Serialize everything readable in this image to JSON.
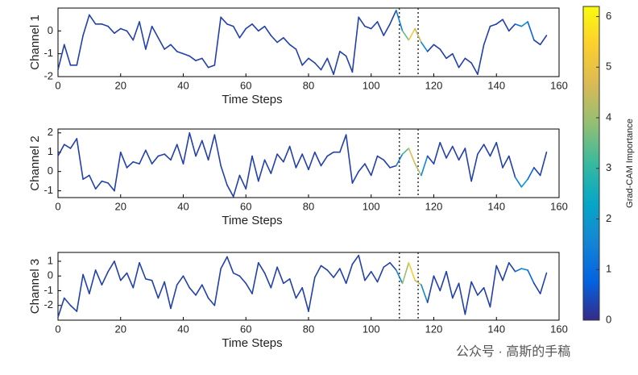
{
  "chart_data": [
    {
      "type": "line",
      "ylabel": "Channel 1",
      "xlabel": "Time Steps",
      "xlim": [
        0,
        160
      ],
      "xticks": [
        0,
        20,
        40,
        60,
        80,
        100,
        120,
        140,
        160
      ],
      "ylim": [
        -2,
        1
      ],
      "yticks": [
        -2,
        -1,
        0
      ],
      "vlines": [
        109,
        115
      ],
      "x": [
        0,
        2,
        4,
        6,
        8,
        10,
        12,
        14,
        16,
        18,
        20,
        22,
        24,
        26,
        28,
        30,
        32,
        34,
        36,
        38,
        40,
        42,
        44,
        46,
        48,
        50,
        52,
        54,
        56,
        58,
        60,
        62,
        64,
        66,
        68,
        70,
        72,
        74,
        76,
        78,
        80,
        82,
        84,
        86,
        88,
        90,
        92,
        94,
        96,
        98,
        100,
        102,
        104,
        106,
        108,
        110,
        112,
        114,
        116,
        118,
        120,
        122,
        124,
        126,
        128,
        130,
        132,
        134,
        136,
        138,
        140,
        142,
        144,
        146,
        148,
        150,
        152,
        154,
        156
      ],
      "values": [
        -1.7,
        -0.6,
        -1.5,
        -1.5,
        -0.2,
        0.7,
        0.3,
        0.3,
        0.2,
        -0.1,
        0.1,
        0.0,
        -0.4,
        0.4,
        -0.8,
        0.2,
        -0.3,
        -0.8,
        -0.6,
        -0.9,
        -1.0,
        -1.1,
        -1.3,
        -1.2,
        -1.6,
        -1.5,
        0.6,
        0.3,
        0.2,
        -0.3,
        0.1,
        0.3,
        0.0,
        0.2,
        -0.2,
        -0.5,
        -0.3,
        -0.6,
        -0.8,
        -1.5,
        -1.2,
        -1.4,
        -1.7,
        -1.2,
        -1.9,
        -0.9,
        -1.1,
        -1.8,
        0.6,
        0.2,
        0.1,
        0.4,
        -0.2,
        0.3,
        0.9,
        0.0,
        -0.4,
        0.1,
        -0.5,
        -0.9,
        -0.6,
        -0.8,
        -1.2,
        -1.0,
        -1.6,
        -1.2,
        -1.4,
        -1.9,
        -0.6,
        0.2,
        0.3,
        0.5,
        0.0,
        0.3,
        0.2,
        0.4,
        -0.4,
        -0.6,
        -0.2
      ],
      "importance": [
        0.3,
        0.3,
        0.3,
        0.3,
        0.3,
        0.3,
        0.3,
        0.3,
        0.3,
        0.3,
        0.3,
        0.3,
        0.3,
        0.3,
        0.3,
        0.3,
        0.3,
        0.3,
        0.3,
        0.3,
        0.3,
        0.3,
        0.3,
        0.3,
        0.3,
        0.3,
        0.3,
        0.3,
        0.3,
        0.3,
        0.3,
        0.3,
        0.3,
        0.3,
        0.3,
        0.3,
        0.3,
        0.3,
        0.3,
        0.3,
        0.3,
        0.3,
        0.3,
        0.3,
        0.3,
        0.3,
        0.3,
        0.3,
        0.3,
        0.3,
        0.3,
        0.3,
        0.3,
        0.3,
        0.3,
        2.5,
        4.5,
        5.8,
        3.0,
        0.3,
        0.3,
        0.3,
        0.3,
        0.3,
        0.3,
        0.3,
        0.3,
        0.3,
        0.3,
        0.3,
        0.3,
        0.3,
        0.3,
        0.3,
        2.0,
        1.5,
        0.3,
        0.3,
        0.3
      ]
    },
    {
      "type": "line",
      "ylabel": "Channel 2",
      "xlabel": "Time Steps",
      "xlim": [
        0,
        160
      ],
      "xticks": [
        0,
        20,
        40,
        60,
        80,
        100,
        120,
        140,
        160
      ],
      "ylim": [
        -1.35,
        2.2
      ],
      "yticks": [
        -1,
        0,
        1,
        2
      ],
      "vlines": [
        109,
        115
      ],
      "x": [
        0,
        2,
        4,
        6,
        8,
        10,
        12,
        14,
        16,
        18,
        20,
        22,
        24,
        26,
        28,
        30,
        32,
        34,
        36,
        38,
        40,
        42,
        44,
        46,
        48,
        50,
        52,
        54,
        56,
        58,
        60,
        62,
        64,
        66,
        68,
        70,
        72,
        74,
        76,
        78,
        80,
        82,
        84,
        86,
        88,
        90,
        92,
        94,
        96,
        98,
        100,
        102,
        104,
        106,
        108,
        110,
        112,
        114,
        116,
        118,
        120,
        122,
        124,
        126,
        128,
        130,
        132,
        134,
        136,
        138,
        140,
        142,
        144,
        146,
        148,
        150,
        152,
        154,
        156
      ],
      "values": [
        0.8,
        1.4,
        1.2,
        1.7,
        -0.4,
        -0.2,
        -0.9,
        -0.5,
        -0.6,
        -1.0,
        1.0,
        0.2,
        0.5,
        0.4,
        1.1,
        0.4,
        0.8,
        0.9,
        0.6,
        1.4,
        0.4,
        2.0,
        0.8,
        1.6,
        0.6,
        1.9,
        0.3,
        -0.7,
        -1.3,
        -0.2,
        -0.9,
        0.8,
        -0.5,
        0.6,
        -0.1,
        0.9,
        0.5,
        1.3,
        0.2,
        0.9,
        0.1,
        1.0,
        0.3,
        0.8,
        1.0,
        1.0,
        1.9,
        -0.6,
        0.0,
        0.4,
        -0.2,
        0.8,
        0.6,
        0.2,
        0.3,
        0.9,
        1.2,
        0.4,
        -0.2,
        0.8,
        0.4,
        1.5,
        0.7,
        1.3,
        0.6,
        1.2,
        -0.5,
        0.9,
        1.4,
        0.8,
        1.5,
        0.2,
        0.8,
        -0.3,
        -0.8,
        -0.4,
        0.2,
        -0.2,
        1.0
      ],
      "importance": [
        0.3,
        0.3,
        0.3,
        0.3,
        0.3,
        0.3,
        0.3,
        0.3,
        0.3,
        0.3,
        0.3,
        0.3,
        0.3,
        0.3,
        0.3,
        0.3,
        0.3,
        0.3,
        0.3,
        0.3,
        0.3,
        0.3,
        0.3,
        0.3,
        0.3,
        0.3,
        0.3,
        0.3,
        0.3,
        0.3,
        0.3,
        0.3,
        0.3,
        0.3,
        0.3,
        0.3,
        0.3,
        0.3,
        0.3,
        0.3,
        0.3,
        0.3,
        0.3,
        0.3,
        0.3,
        0.3,
        0.3,
        0.3,
        0.3,
        0.3,
        0.3,
        0.3,
        0.3,
        0.3,
        0.3,
        2.5,
        4.0,
        5.5,
        3.0,
        0.3,
        0.3,
        0.3,
        0.3,
        0.3,
        0.3,
        0.3,
        0.3,
        0.3,
        0.3,
        0.3,
        0.3,
        0.3,
        0.3,
        0.3,
        2.5,
        1.5,
        0.3,
        0.3,
        0.3
      ]
    },
    {
      "type": "line",
      "ylabel": "Channel 3",
      "xlabel": "Time Steps",
      "xlim": [
        0,
        160
      ],
      "xticks": [
        0,
        20,
        40,
        60,
        80,
        100,
        120,
        140,
        160
      ],
      "ylim": [
        -3,
        1.6
      ],
      "yticks": [
        -2,
        -1,
        0,
        1
      ],
      "vlines": [
        109,
        115
      ],
      "x": [
        0,
        2,
        4,
        6,
        8,
        10,
        12,
        14,
        16,
        18,
        20,
        22,
        24,
        26,
        28,
        30,
        32,
        34,
        36,
        38,
        40,
        42,
        44,
        46,
        48,
        50,
        52,
        54,
        56,
        58,
        60,
        62,
        64,
        66,
        68,
        70,
        72,
        74,
        76,
        78,
        80,
        82,
        84,
        86,
        88,
        90,
        92,
        94,
        96,
        98,
        100,
        102,
        104,
        106,
        108,
        110,
        112,
        114,
        116,
        118,
        120,
        122,
        124,
        126,
        128,
        130,
        132,
        134,
        136,
        138,
        140,
        142,
        144,
        146,
        148,
        150,
        152,
        154,
        156
      ],
      "values": [
        -2.8,
        -1.5,
        -2.0,
        -2.4,
        0.1,
        -1.2,
        0.4,
        -0.6,
        0.3,
        1.0,
        -0.3,
        0.2,
        -0.8,
        0.9,
        -0.2,
        -0.3,
        -1.5,
        -0.4,
        -2.2,
        -0.6,
        0.0,
        -0.8,
        -1.3,
        -0.6,
        -1.5,
        -2.0,
        0.5,
        1.3,
        0.2,
        0.0,
        -0.5,
        -1.2,
        0.9,
        0.2,
        -0.8,
        0.6,
        -0.5,
        -0.2,
        -1.5,
        -0.8,
        -2.4,
        -0.1,
        0.7,
        0.4,
        -0.1,
        0.5,
        -0.5,
        0.8,
        1.4,
        -0.3,
        0.3,
        -0.4,
        0.6,
        0.9,
        0.4,
        -0.5,
        0.9,
        -0.3,
        -0.6,
        -1.8,
        0.0,
        -1.0,
        0.3,
        -1.5,
        -0.5,
        -2.6,
        -0.4,
        -1.3,
        -0.8,
        -2.1,
        0.7,
        -0.3,
        0.9,
        0.3,
        0.5,
        0.4,
        -0.5,
        -1.2,
        0.2
      ],
      "importance": [
        0.3,
        0.3,
        0.3,
        0.3,
        0.3,
        0.3,
        0.3,
        0.3,
        0.3,
        0.3,
        0.3,
        0.3,
        0.3,
        0.3,
        0.3,
        0.3,
        0.3,
        0.3,
        0.3,
        0.3,
        0.3,
        0.3,
        0.3,
        0.3,
        0.3,
        0.3,
        0.3,
        0.3,
        0.3,
        0.3,
        0.3,
        0.3,
        0.3,
        0.3,
        0.3,
        0.3,
        0.3,
        0.3,
        0.3,
        0.3,
        0.3,
        0.3,
        0.3,
        0.3,
        0.3,
        0.3,
        0.3,
        0.3,
        0.3,
        0.3,
        0.3,
        0.3,
        0.3,
        0.3,
        0.3,
        3.0,
        5.0,
        5.8,
        3.0,
        0.3,
        0.3,
        0.3,
        0.3,
        0.3,
        0.3,
        0.3,
        0.3,
        0.3,
        0.3,
        0.3,
        0.3,
        0.3,
        0.3,
        0.3,
        2.0,
        1.5,
        0.3,
        0.3,
        0.3
      ]
    }
  ],
  "colorbar": {
    "label": "Grad-CAM Importance",
    "lim": [
      0,
      6.2
    ],
    "ticks": [
      0,
      1,
      2,
      3,
      4,
      5,
      6
    ],
    "colors": [
      "#352a87",
      "#0363e1",
      "#1485d4",
      "#06a7c6",
      "#38b99e",
      "#92bf73",
      "#d9ba56",
      "#fcce2e",
      "#f9fb0e"
    ]
  },
  "watermark": "公众号 · 高斯的手稿"
}
